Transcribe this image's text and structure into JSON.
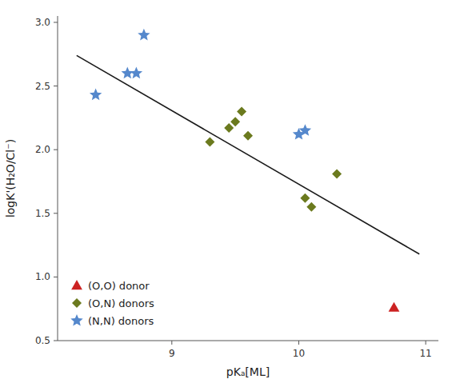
{
  "chart_data": {
    "type": "scatter",
    "x_label": "pKₐ[ML]",
    "y_label": "logK'(H₂O/Cl⁻)",
    "xlim": [
      8.1,
      11.1
    ],
    "ylim": [
      0.5,
      3.05
    ],
    "xticks": [
      9,
      10,
      11
    ],
    "yticks": [
      0.5,
      {
        "value": 1,
        "label": "1.0"
      },
      {
        "value": 1.5,
        "label": "1.5"
      },
      {
        "value": 2,
        "label": "2.0"
      },
      2.5,
      {
        "value": 3,
        "label": "3.0"
      }
    ],
    "grid": false,
    "legend": "lower left",
    "series": [
      {
        "type": "line",
        "color": "#1a1a1a",
        "line_style": "solid",
        "x": [
          8.25,
          10.95
        ],
        "values": [
          2.74,
          1.18
        ]
      },
      {
        "type": "scatter",
        "name": "(O,O) donor",
        "color": "#cc2222",
        "marker": "triangle",
        "x": [
          10.75
        ],
        "values": [
          0.76
        ]
      },
      {
        "type": "scatter",
        "name": "(O,N) donors",
        "color": "#6b7a1e",
        "marker": "diamond",
        "x": [
          9.3,
          9.45,
          9.5,
          9.55,
          9.6,
          10.05,
          10.1,
          10.3
        ],
        "values": [
          2.06,
          2.17,
          2.22,
          2.3,
          2.11,
          1.62,
          1.55,
          1.81
        ]
      },
      {
        "type": "scatter",
        "name": "(N,N) donors",
        "color": "#5588cc",
        "marker": "star",
        "x": [
          8.4,
          8.65,
          8.72,
          8.78,
          10.0,
          10.05
        ],
        "values": [
          2.43,
          2.6,
          2.6,
          2.9,
          2.12,
          2.15
        ]
      }
    ]
  }
}
